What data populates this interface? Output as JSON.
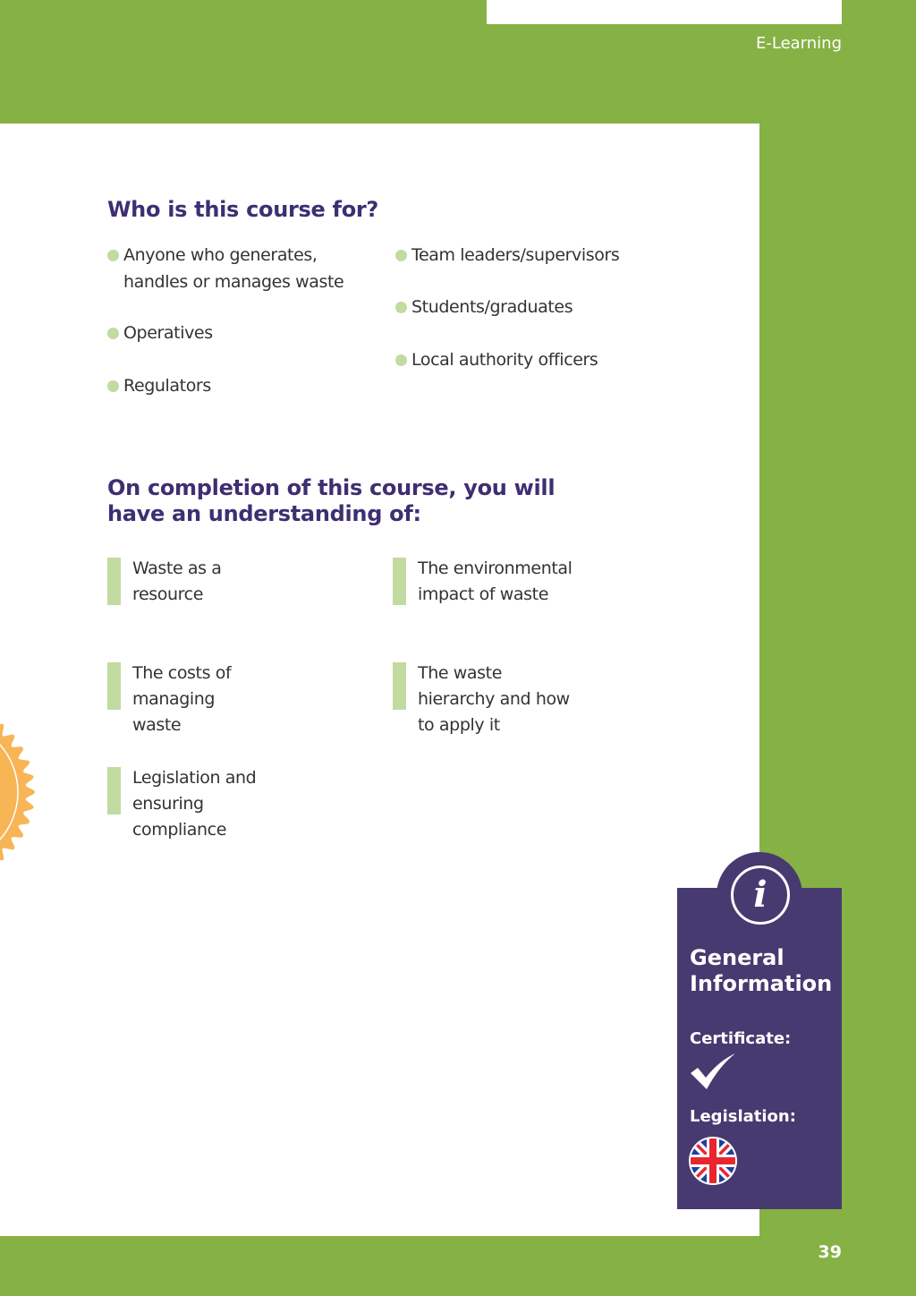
{
  "header": {
    "section_label": "E-Learning"
  },
  "audience": {
    "title": "Who is this course for?",
    "items": [
      "Anyone who generates, handles or manages waste",
      "Operatives",
      "Regulators",
      "Team leaders/supervisors",
      "Students/graduates",
      "Local authority officers"
    ]
  },
  "outcomes": {
    "title": "On completion of this course, you will have an understanding of:",
    "items": [
      "Waste as a resource",
      "The environmental impact of waste",
      "The costs of managing waste",
      "The waste hierarchy and how to apply it",
      "Legislation and ensuring compliance"
    ]
  },
  "info": {
    "icon": "info-icon",
    "title": "General Information",
    "certificate_label": "Certificate:",
    "certificate_icon": "checkmark-icon",
    "legislation_label": "Legislation:",
    "legislation_icon": "uk-flag-icon"
  },
  "footer": {
    "page_number": "39"
  },
  "colors": {
    "brand_green": "#86b144",
    "purple": "#473a70",
    "heading": "#3e2f72",
    "bullet": "#c2dba0",
    "seal": "#f7b556"
  }
}
